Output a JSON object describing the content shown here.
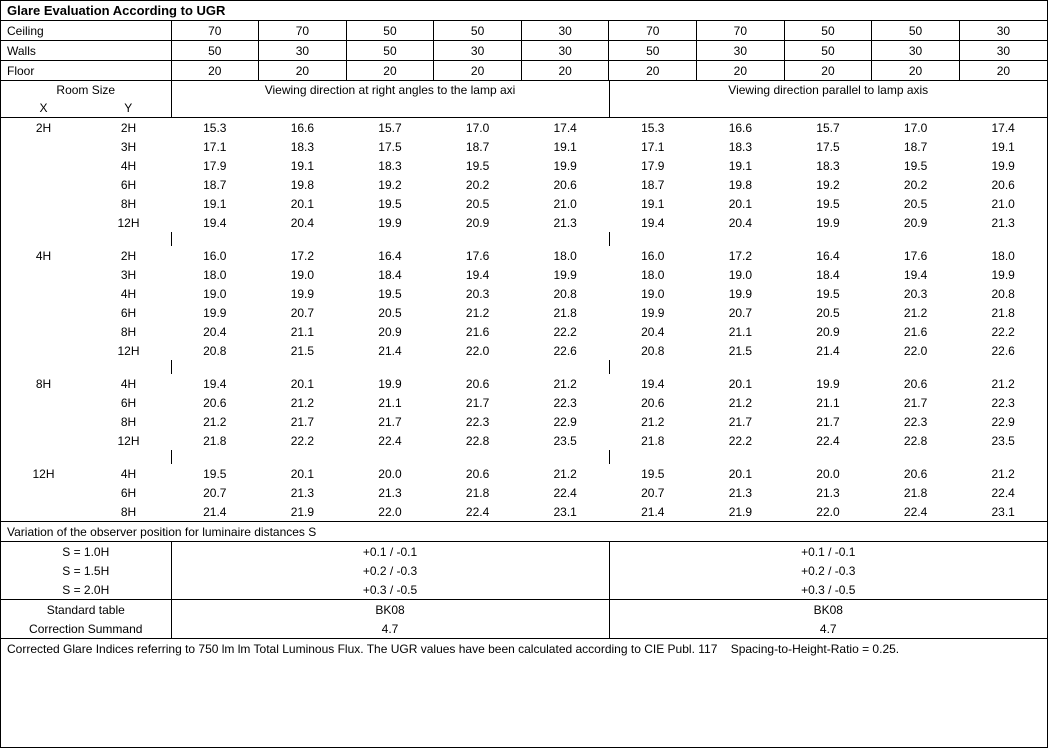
{
  "title": "Glare Evaluation According to UGR",
  "header": {
    "labels": {
      "ceiling": "Ceiling",
      "walls": "Walls",
      "floor": "Floor"
    },
    "ceiling": [
      "70",
      "70",
      "50",
      "50",
      "30",
      "70",
      "70",
      "50",
      "50",
      "30"
    ],
    "walls": [
      "50",
      "30",
      "50",
      "30",
      "30",
      "50",
      "30",
      "50",
      "30",
      "30"
    ],
    "floor": [
      "20",
      "20",
      "20",
      "20",
      "20",
      "20",
      "20",
      "20",
      "20",
      "20"
    ]
  },
  "room_size": {
    "label": "Room Size",
    "x": "X",
    "y": "Y",
    "left_caption": "Viewing direction at right angles to the lamp axi",
    "right_caption": "Viewing direction parallel to lamp axis"
  },
  "groups": [
    {
      "x": "2H",
      "rows": [
        {
          "y": "2H",
          "l": [
            "15.3",
            "16.6",
            "15.7",
            "17.0",
            "17.4"
          ],
          "r": [
            "15.3",
            "16.6",
            "15.7",
            "17.0",
            "17.4"
          ]
        },
        {
          "y": "3H",
          "l": [
            "17.1",
            "18.3",
            "17.5",
            "18.7",
            "19.1"
          ],
          "r": [
            "17.1",
            "18.3",
            "17.5",
            "18.7",
            "19.1"
          ]
        },
        {
          "y": "4H",
          "l": [
            "17.9",
            "19.1",
            "18.3",
            "19.5",
            "19.9"
          ],
          "r": [
            "17.9",
            "19.1",
            "18.3",
            "19.5",
            "19.9"
          ]
        },
        {
          "y": "6H",
          "l": [
            "18.7",
            "19.8",
            "19.2",
            "20.2",
            "20.6"
          ],
          "r": [
            "18.7",
            "19.8",
            "19.2",
            "20.2",
            "20.6"
          ]
        },
        {
          "y": "8H",
          "l": [
            "19.1",
            "20.1",
            "19.5",
            "20.5",
            "21.0"
          ],
          "r": [
            "19.1",
            "20.1",
            "19.5",
            "20.5",
            "21.0"
          ]
        },
        {
          "y": "12H",
          "l": [
            "19.4",
            "20.4",
            "19.9",
            "20.9",
            "21.3"
          ],
          "r": [
            "19.4",
            "20.4",
            "19.9",
            "20.9",
            "21.3"
          ]
        }
      ]
    },
    {
      "x": "4H",
      "rows": [
        {
          "y": "2H",
          "l": [
            "16.0",
            "17.2",
            "16.4",
            "17.6",
            "18.0"
          ],
          "r": [
            "16.0",
            "17.2",
            "16.4",
            "17.6",
            "18.0"
          ]
        },
        {
          "y": "3H",
          "l": [
            "18.0",
            "19.0",
            "18.4",
            "19.4",
            "19.9"
          ],
          "r": [
            "18.0",
            "19.0",
            "18.4",
            "19.4",
            "19.9"
          ]
        },
        {
          "y": "4H",
          "l": [
            "19.0",
            "19.9",
            "19.5",
            "20.3",
            "20.8"
          ],
          "r": [
            "19.0",
            "19.9",
            "19.5",
            "20.3",
            "20.8"
          ]
        },
        {
          "y": "6H",
          "l": [
            "19.9",
            "20.7",
            "20.5",
            "21.2",
            "21.8"
          ],
          "r": [
            "19.9",
            "20.7",
            "20.5",
            "21.2",
            "21.8"
          ]
        },
        {
          "y": "8H",
          "l": [
            "20.4",
            "21.1",
            "20.9",
            "21.6",
            "22.2"
          ],
          "r": [
            "20.4",
            "21.1",
            "20.9",
            "21.6",
            "22.2"
          ]
        },
        {
          "y": "12H",
          "l": [
            "20.8",
            "21.5",
            "21.4",
            "22.0",
            "22.6"
          ],
          "r": [
            "20.8",
            "21.5",
            "21.4",
            "22.0",
            "22.6"
          ]
        }
      ]
    },
    {
      "x": "8H",
      "rows": [
        {
          "y": "4H",
          "l": [
            "19.4",
            "20.1",
            "19.9",
            "20.6",
            "21.2"
          ],
          "r": [
            "19.4",
            "20.1",
            "19.9",
            "20.6",
            "21.2"
          ]
        },
        {
          "y": "6H",
          "l": [
            "20.6",
            "21.2",
            "21.1",
            "21.7",
            "22.3"
          ],
          "r": [
            "20.6",
            "21.2",
            "21.1",
            "21.7",
            "22.3"
          ]
        },
        {
          "y": "8H",
          "l": [
            "21.2",
            "21.7",
            "21.7",
            "22.3",
            "22.9"
          ],
          "r": [
            "21.2",
            "21.7",
            "21.7",
            "22.3",
            "22.9"
          ]
        },
        {
          "y": "12H",
          "l": [
            "21.8",
            "22.2",
            "22.4",
            "22.8",
            "23.5"
          ],
          "r": [
            "21.8",
            "22.2",
            "22.4",
            "22.8",
            "23.5"
          ]
        }
      ]
    },
    {
      "x": "12H",
      "rows": [
        {
          "y": "4H",
          "l": [
            "19.5",
            "20.1",
            "20.0",
            "20.6",
            "21.2"
          ],
          "r": [
            "19.5",
            "20.1",
            "20.0",
            "20.6",
            "21.2"
          ]
        },
        {
          "y": "6H",
          "l": [
            "20.7",
            "21.3",
            "21.3",
            "21.8",
            "22.4"
          ],
          "r": [
            "20.7",
            "21.3",
            "21.3",
            "21.8",
            "22.4"
          ]
        },
        {
          "y": "8H",
          "l": [
            "21.4",
            "21.9",
            "22.0",
            "22.4",
            "23.1"
          ],
          "r": [
            "21.4",
            "21.9",
            "22.0",
            "22.4",
            "23.1"
          ]
        }
      ]
    }
  ],
  "variation": {
    "title": "Variation of the observer position for luminaire distances S",
    "rows": [
      {
        "label": "S = 1.0H",
        "left": "+0.1 / -0.1",
        "right": "+0.1 / -0.1"
      },
      {
        "label": "S = 1.5H",
        "left": "+0.2 / -0.3",
        "right": "+0.2 / -0.3"
      },
      {
        "label": "S = 2.0H",
        "left": "+0.3 / -0.5",
        "right": "+0.3 / -0.5"
      }
    ]
  },
  "standard": {
    "label1": "Standard table",
    "label2": "Correction Summand",
    "val1_left": "BK08",
    "val1_right": "BK08",
    "val2_left": "4.7",
    "val2_right": "4.7"
  },
  "footer": "Corrected Glare Indices referring to 750 lm lm Total Luminous Flux. The UGR values have been calculated according to CIE Publ. 117    Spacing-to-Height-Ratio = 0.25."
}
